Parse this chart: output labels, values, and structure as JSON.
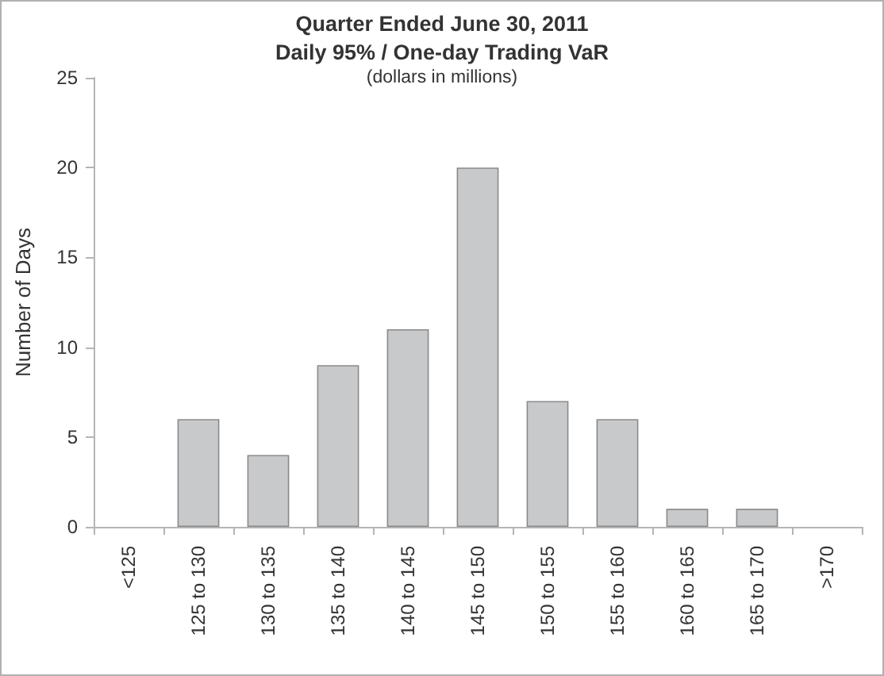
{
  "chart_data": {
    "type": "bar",
    "title": "Quarter Ended June 30, 2011",
    "subtitle": "Daily 95% / One-day Trading VaR",
    "annotations": [
      "(dollars in millions)"
    ],
    "ylabel": "Number of Days",
    "categories": [
      "<125",
      "125 to 130",
      "130 to 135",
      "135 to 140",
      "140 to 145",
      "145 to 150",
      "150 to 155",
      "155 to 160",
      "160 to 165",
      "165 to 170",
      ">170"
    ],
    "values": [
      0,
      6,
      4,
      9,
      11,
      20,
      7,
      6,
      1,
      1,
      0
    ],
    "color": "#c8c9cb",
    "ylim": [
      0,
      25
    ],
    "yticks": [
      0,
      5,
      10,
      15,
      20,
      25
    ],
    "grid": false
  }
}
